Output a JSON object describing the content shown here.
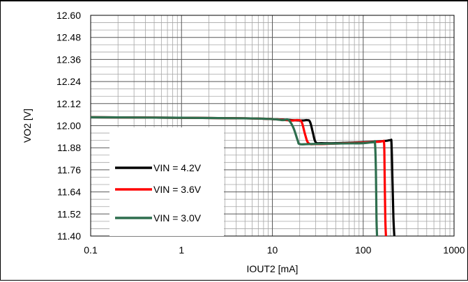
{
  "chart_data": {
    "type": "line",
    "title": "",
    "xlabel": "IOUT2 [mA]",
    "ylabel": "VO2 [V]",
    "xscale": "log",
    "xlim": [
      0.1,
      1000
    ],
    "ylim": [
      11.4,
      12.6
    ],
    "x_ticks": [
      "0.1",
      "1",
      "10",
      "100",
      "1000"
    ],
    "y_ticks": [
      "12.60",
      "12.48",
      "12.36",
      "12.24",
      "12.12",
      "12.00",
      "11.88",
      "11.76",
      "11.64",
      "11.52",
      "11.40"
    ],
    "grid": true,
    "legend": "lower-left",
    "series": [
      {
        "name": "VIN = 4.2V",
        "color": "#000000",
        "x": [
          0.1,
          1,
          5,
          10,
          20,
          24,
          26,
          28,
          30,
          35,
          50,
          100,
          150,
          180,
          200,
          205,
          210,
          215,
          220
        ],
        "y": [
          12.046,
          12.043,
          12.04,
          12.036,
          12.028,
          12.03,
          12.02,
          11.96,
          11.91,
          11.905,
          11.905,
          11.91,
          11.915,
          11.918,
          11.92,
          11.9,
          11.7,
          11.5,
          11.4
        ]
      },
      {
        "name": "VIN = 3.6V",
        "color": "#ff0000",
        "x": [
          0.1,
          1,
          5,
          10,
          16,
          19,
          21,
          23,
          25,
          30,
          50,
          100,
          150,
          165,
          170,
          172,
          175,
          178
        ],
        "y": [
          12.046,
          12.043,
          12.04,
          12.036,
          12.028,
          12.03,
          12.02,
          11.95,
          11.905,
          11.9,
          11.903,
          11.908,
          11.913,
          11.915,
          11.9,
          11.75,
          11.5,
          11.4
        ]
      },
      {
        "name": "VIN = 3.0V",
        "color": "#2e6e4e",
        "x": [
          0.1,
          1,
          5,
          10,
          13,
          15,
          17,
          19,
          20,
          25,
          50,
          100,
          130,
          135,
          138,
          140,
          142
        ],
        "y": [
          12.046,
          12.043,
          12.04,
          12.036,
          12.03,
          12.032,
          11.99,
          11.92,
          11.9,
          11.9,
          11.903,
          11.905,
          11.91,
          11.9,
          11.75,
          11.5,
          11.4
        ]
      }
    ]
  }
}
